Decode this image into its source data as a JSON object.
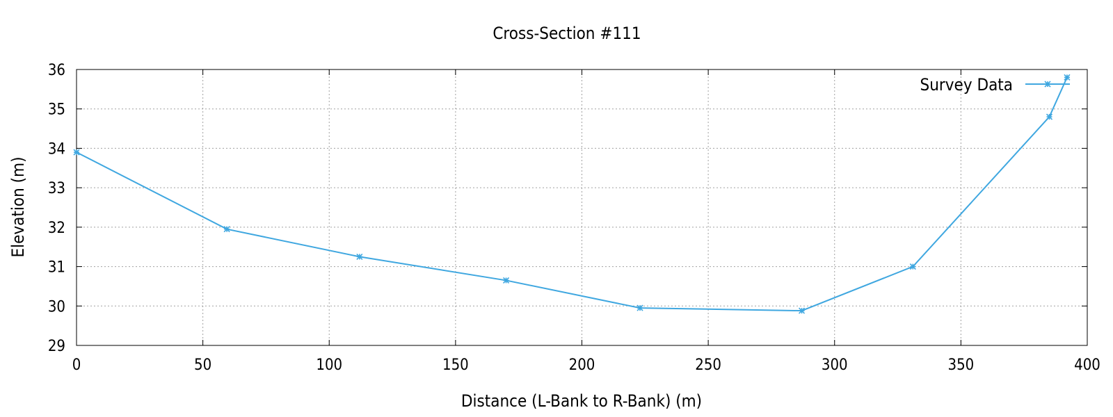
{
  "chart_data": {
    "type": "line",
    "title": "Cross-Section #111",
    "xlabel": "Distance (L-Bank to R-Bank) (m)",
    "ylabel": "Elevation (m)",
    "xlim": [
      0,
      400
    ],
    "ylim": [
      29,
      36
    ],
    "xticks": [
      0,
      50,
      100,
      150,
      200,
      250,
      300,
      350,
      400
    ],
    "yticks": [
      29,
      30,
      31,
      32,
      33,
      34,
      35,
      36
    ],
    "grid": true,
    "legend_position": "top-right",
    "series": [
      {
        "name": "Survey Data",
        "color": "#3fa7e0",
        "marker": "asterisk",
        "x": [
          0,
          59.5,
          112,
          170,
          223,
          287,
          331,
          385,
          392
        ],
        "y": [
          33.9,
          31.95,
          31.25,
          30.65,
          29.95,
          29.88,
          31.0,
          34.8,
          35.8
        ]
      }
    ]
  }
}
